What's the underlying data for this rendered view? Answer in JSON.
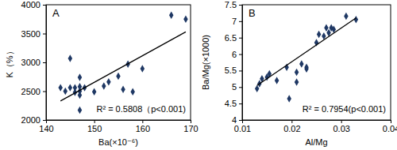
{
  "chart_data": [
    {
      "type": "scatter",
      "title": "A",
      "x_label": "Ba(×10⁻⁶)",
      "y_label": "K（%）",
      "annotations": [
        "R² = 0.5808（p<0.001)"
      ],
      "xlim": [
        140,
        170
      ],
      "xticks": [
        140,
        150,
        160,
        170
      ],
      "ylim": [
        2000,
        4000
      ],
      "yticks": [
        2000,
        2500,
        3000,
        3500,
        4000
      ],
      "grid": false,
      "series": [
        {
          "type": "scatter",
          "marker": "diamond",
          "color": "#1f3864",
          "x": [
            143,
            144,
            145,
            145,
            146,
            146,
            147,
            147,
            147,
            147,
            147,
            148,
            150,
            152,
            153,
            155,
            156,
            157,
            158,
            160,
            166,
            169
          ],
          "values": [
            2560,
            2500,
            2560,
            3070,
            2480,
            2560,
            2500,
            2430,
            2580,
            2740,
            2170,
            2560,
            2490,
            2590,
            2660,
            2760,
            2530,
            2970,
            2490,
            2890,
            3820,
            3750
          ]
        },
        {
          "type": "line",
          "line_style": "solid",
          "color": "#000000",
          "x": [
            143,
            169
          ],
          "values": [
            2330,
            3530
          ]
        }
      ]
    },
    {
      "type": "scatter",
      "title": "B",
      "x_label": "Al/Mg",
      "y_label": "Ba/Mg(×1000)",
      "annotations": [
        "R² = 0.7954(p<0.001)"
      ],
      "xlim": [
        0.01,
        0.04
      ],
      "xticks": [
        0.01,
        0.02,
        0.03,
        0.04
      ],
      "ylim": [
        4,
        7.5
      ],
      "yticks": [
        4,
        4.5,
        5,
        5.5,
        6,
        6.5,
        7,
        7.5
      ],
      "grid": false,
      "series": [
        {
          "type": "scatter",
          "marker": "diamond",
          "color": "#1f3864",
          "x": [
            0.013,
            0.0135,
            0.014,
            0.015,
            0.0155,
            0.017,
            0.019,
            0.0195,
            0.021,
            0.021,
            0.022,
            0.023,
            0.023,
            0.025,
            0.0255,
            0.0265,
            0.027,
            0.0275,
            0.028,
            0.0285,
            0.031,
            0.033
          ],
          "values": [
            4.95,
            5.1,
            5.25,
            5.3,
            5.4,
            5.2,
            5.6,
            4.65,
            5.15,
            5.45,
            5.7,
            5.55,
            5.6,
            6.35,
            6.6,
            6.55,
            6.8,
            6.65,
            6.8,
            6.75,
            7.15,
            7.05
          ]
        },
        {
          "type": "line",
          "line_style": "solid",
          "color": "#000000",
          "x": [
            0.013,
            0.033
          ],
          "values": [
            5.05,
            7.1
          ]
        }
      ]
    }
  ]
}
